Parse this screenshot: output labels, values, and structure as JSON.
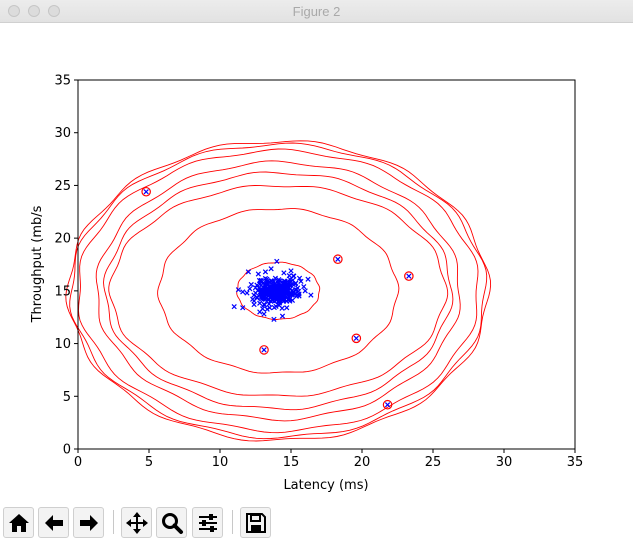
{
  "window": {
    "title": "Figure 2"
  },
  "chart_data": {
    "type": "scatter",
    "xlabel": "Latency (ms)",
    "ylabel": "Throughput (mb/s",
    "xlim": [
      0,
      35
    ],
    "ylim": [
      0,
      35
    ],
    "xticks": [
      "0",
      "5",
      "10",
      "15",
      "20",
      "25",
      "30",
      "35"
    ],
    "yticks": [
      "0",
      "5",
      "10",
      "15",
      "20",
      "25",
      "30",
      "35"
    ],
    "series": [
      {
        "marker": "x",
        "color": "#0000ff",
        "points": [
          [
            13.6,
            14.9
          ],
          [
            13.1,
            15.3
          ],
          [
            14.2,
            14.6
          ],
          [
            14.8,
            15.6
          ],
          [
            13.3,
            16.1
          ],
          [
            12.6,
            14.4
          ],
          [
            15.3,
            15.1
          ],
          [
            14.1,
            13.7
          ],
          [
            13.0,
            13.3
          ],
          [
            15.6,
            16.2
          ],
          [
            12.2,
            15.6
          ],
          [
            14.5,
            16.7
          ],
          [
            13.8,
            15.9
          ],
          [
            12.7,
            16.6
          ],
          [
            15.1,
            14.1
          ],
          [
            14.3,
            15.2
          ],
          [
            13.4,
            14.2
          ],
          [
            12.9,
            15.0
          ],
          [
            15.9,
            15.4
          ],
          [
            11.9,
            14.8
          ],
          [
            14.7,
            13.4
          ],
          [
            16.2,
            16.1
          ],
          [
            13.6,
            17.1
          ],
          [
            11.3,
            15.1
          ],
          [
            12.0,
            16.8
          ],
          [
            15.0,
            16.9
          ],
          [
            13.1,
            12.8
          ],
          [
            14.4,
            12.6
          ],
          [
            16.4,
            14.6
          ],
          [
            12.4,
            13.7
          ],
          [
            11.0,
            13.5
          ],
          [
            11.6,
            13.4
          ],
          [
            14.0,
            17.8
          ],
          [
            13.8,
            12.3
          ],
          [
            12.8,
            13.0
          ],
          [
            12.3,
            14.2
          ],
          [
            14.9,
            14.4
          ],
          [
            15.4,
            14.5
          ],
          [
            13.2,
            16.8
          ],
          [
            14.6,
            15.7
          ],
          [
            12.5,
            15.3
          ],
          [
            15.7,
            15.9
          ],
          [
            16.0,
            15.0
          ],
          [
            14.0,
            14.3
          ],
          [
            13.5,
            13.4
          ],
          [
            12.9,
            15.9
          ],
          [
            13.9,
            16.2
          ],
          [
            15.2,
            16.4
          ],
          [
            11.6,
            14.9
          ],
          [
            12.1,
            15.2
          ],
          [
            4.8,
            24.4
          ],
          [
            18.3,
            18.0
          ],
          [
            23.3,
            16.4
          ],
          [
            19.6,
            10.5
          ],
          [
            13.1,
            9.4
          ],
          [
            21.8,
            4.2
          ]
        ]
      }
    ],
    "anomalies": {
      "marker": "circle",
      "color": "#ff0000",
      "points": [
        [
          4.8,
          24.4
        ],
        [
          18.3,
          18.0
        ],
        [
          23.3,
          16.4
        ],
        [
          19.6,
          10.5
        ],
        [
          13.1,
          9.4
        ],
        [
          21.8,
          4.2
        ]
      ]
    },
    "contours": {
      "color": "#ff0000",
      "center": [
        14.1,
        15.0
      ],
      "semi_axes": [
        [
          2.9,
          2.7
        ],
        [
          8.4,
          7.8
        ],
        [
          11.8,
          10.0
        ],
        [
          12.2,
          11.2
        ],
        [
          12.8,
          12.2
        ],
        [
          14.1,
          13.3
        ],
        [
          14.6,
          13.9
        ],
        [
          14.8,
          14.2
        ]
      ]
    }
  },
  "toolbar": {
    "buttons": [
      {
        "name": "home",
        "icon": "home-icon"
      },
      {
        "name": "back",
        "icon": "arrow-left-icon"
      },
      {
        "name": "forward",
        "icon": "arrow-right-icon"
      },
      {
        "name": "pan",
        "icon": "move-icon"
      },
      {
        "name": "zoom",
        "icon": "magnifier-icon"
      },
      {
        "name": "configure",
        "icon": "sliders-icon"
      },
      {
        "name": "save",
        "icon": "floppy-disk-icon"
      }
    ]
  }
}
